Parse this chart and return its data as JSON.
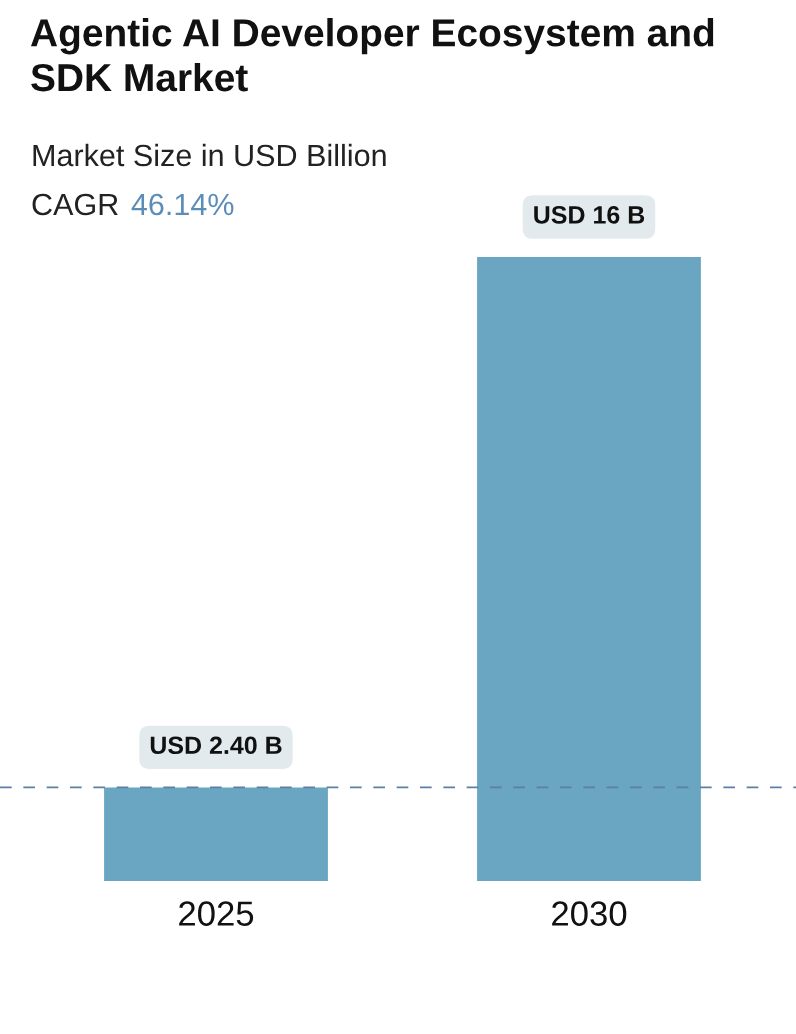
{
  "chart_data": {
    "type": "bar",
    "title": "Agentic AI Developer Ecosystem and SDK Market",
    "subtitle": "Market Size in USD Billion",
    "annotations": [
      "CAGR",
      "46.14%"
    ],
    "categories": [
      "2025",
      "2030"
    ],
    "values": [
      2.4,
      16
    ],
    "colors": [
      "#6aa5c1",
      "#6aa5c1"
    ],
    "value_labels": [
      "USD 2.40 B",
      "USD 16 B"
    ],
    "ref_lines": [
      {
        "axis": "y",
        "value": 2.4,
        "color": "#5b80a8",
        "line_style": "dashed"
      }
    ],
    "tick_labels": "x",
    "grid": false
  }
}
